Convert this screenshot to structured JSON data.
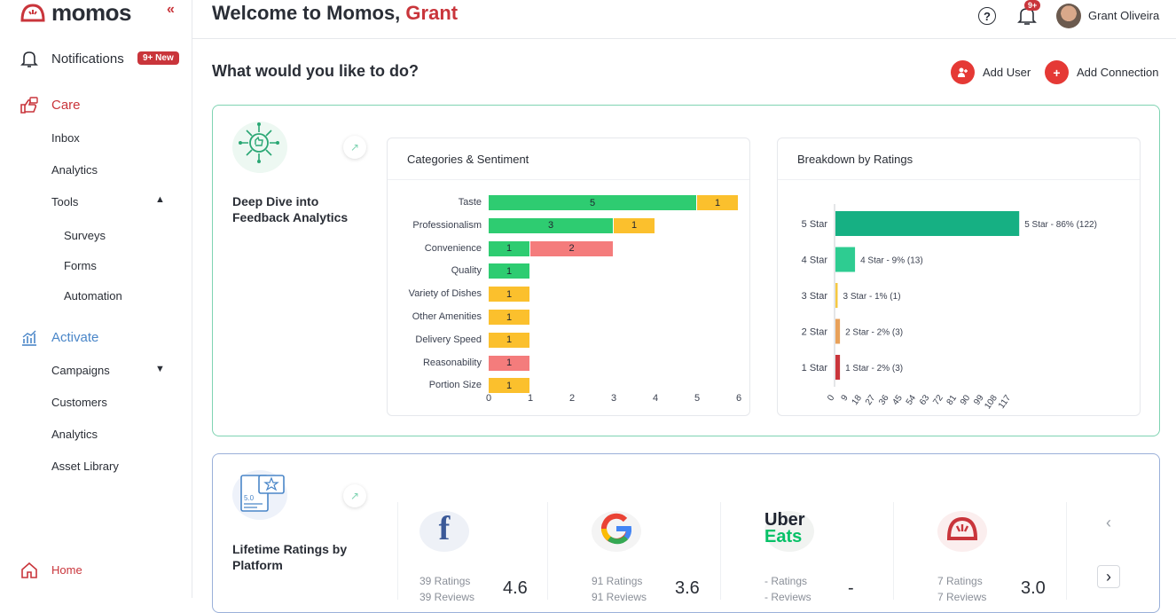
{
  "app": {
    "brand": "momos"
  },
  "sidebar": {
    "notifications": {
      "label": "Notifications",
      "badge": "9+ New"
    },
    "care": {
      "label": "Care",
      "items": [
        "Inbox",
        "Analytics"
      ],
      "tools": {
        "label": "Tools",
        "items": [
          "Surveys",
          "Forms",
          "Automation"
        ]
      }
    },
    "activate": {
      "label": "Activate",
      "campaigns": "Campaigns",
      "items": [
        "Customers",
        "Analytics",
        "Asset Library"
      ]
    },
    "home": "Home"
  },
  "header": {
    "welcome_prefix": "Welcome to Momos,",
    "welcome_name": "Grant",
    "bell_badge": "9+",
    "user_name": "Grant Oliveira"
  },
  "main": {
    "question": "What would you like to do?",
    "actions": {
      "add_user": "Add User",
      "add_connection": "Add Connection"
    },
    "feedback_card": {
      "title_line1": "Deep Dive into",
      "title_line2": "Feedback Analytics"
    },
    "ratings_card": {
      "title_line1": "Lifetime Ratings by",
      "title_line2": "Platform"
    }
  },
  "chart_data": [
    {
      "type": "bar",
      "title": "Categories & Sentiment",
      "orientation": "horizontal",
      "stacked": true,
      "categories": [
        "Taste",
        "Professionalism",
        "Convenience",
        "Quality",
        "Variety of Dishes",
        "Other Amenities",
        "Delivery Speed",
        "Reasonability",
        "Portion Size"
      ],
      "series": [
        {
          "values": [
            5,
            3,
            1,
            1,
            0,
            0,
            0,
            0,
            0
          ]
        },
        {
          "values": [
            1,
            1,
            0,
            0,
            1,
            1,
            1,
            0,
            1
          ]
        },
        {
          "values": [
            0,
            0,
            2,
            0,
            0,
            0,
            0,
            1,
            0
          ]
        }
      ],
      "colors": [
        "#2ecc71",
        "#fbc02d",
        "#f47c7c"
      ],
      "xticks": [
        "0",
        "1",
        "2",
        "3",
        "4",
        "5",
        "6"
      ],
      "xlim": [
        0,
        6
      ]
    },
    {
      "type": "bar",
      "title": "Breakdown by Ratings",
      "orientation": "horizontal",
      "categories": [
        "5 Star",
        "4 Star",
        "3 Star",
        "2 Star",
        "1 Star"
      ],
      "values": [
        122,
        13,
        1,
        3,
        3
      ],
      "labels": [
        "5 Star - 86% (122)",
        "4 Star - 9% (13)",
        "3 Star - 1% (1)",
        "2 Star - 2% (3)",
        "1 Star - 2% (3)"
      ],
      "colors": [
        "#16b083",
        "#2ecc91",
        "#f5c842",
        "#e8a15a",
        "#c9353b"
      ],
      "xticks": [
        "0",
        "9",
        "18",
        "27",
        "36",
        "45",
        "54",
        "63",
        "72",
        "81",
        "90",
        "99",
        "108",
        "117"
      ],
      "xlim": [
        0,
        126
      ]
    }
  ],
  "platforms": [
    {
      "name": "facebook-icon",
      "ratings": "39 Ratings",
      "reviews": "39 Reviews",
      "score": "4.6"
    },
    {
      "name": "google-icon",
      "ratings": "91 Ratings",
      "reviews": "91 Reviews",
      "score": "3.6"
    },
    {
      "name": "ubereats-icon",
      "ratings": "- Ratings",
      "reviews": "- Reviews",
      "score": "-"
    },
    {
      "name": "momos-icon",
      "ratings": "7 Ratings",
      "reviews": "7 Reviews",
      "score": "3.0"
    }
  ],
  "platform_logos": {
    "uber_line1": "Uber",
    "uber_line2": "Eats"
  }
}
